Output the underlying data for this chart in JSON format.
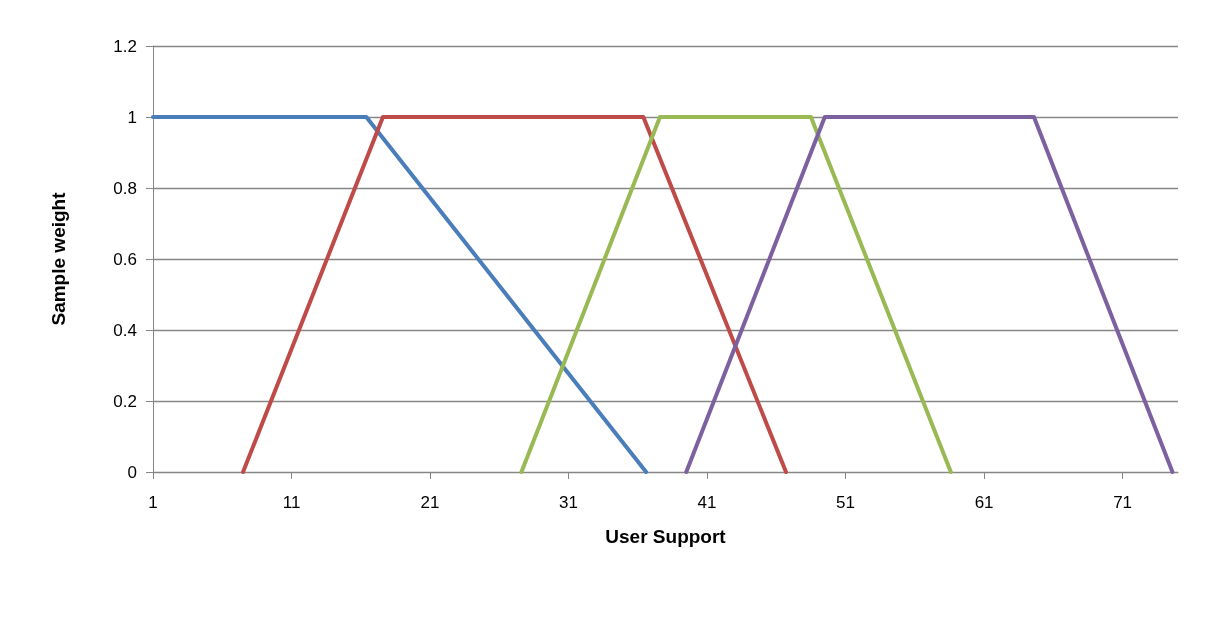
{
  "chart_data": {
    "type": "line",
    "xlabel": "User Support",
    "ylabel": "Sample weight",
    "xlim": [
      1,
      75
    ],
    "xticks": [
      1,
      11,
      21,
      31,
      41,
      51,
      61,
      71
    ],
    "ylim": [
      0,
      1.2
    ],
    "yticks": [
      0,
      0.2,
      0.4,
      0.6,
      0.8,
      1,
      1.2
    ],
    "grid": "y",
    "marker": "none",
    "line_style": "solid",
    "series": [
      {
        "color": "#4a7ebb",
        "x": [
          1,
          16.4,
          36.6
        ],
        "values": [
          1,
          1,
          0
        ]
      },
      {
        "color": "#be4b48",
        "x": [
          7.5,
          17.6,
          36.4,
          46.7
        ],
        "values": [
          0,
          1,
          1,
          0
        ]
      },
      {
        "color": "#98b954",
        "x": [
          27.6,
          37.6,
          48.5,
          58.6
        ],
        "values": [
          0,
          1,
          1,
          0
        ]
      },
      {
        "color": "#7d60a0",
        "x": [
          39.5,
          49.5,
          64.6,
          74.6
        ],
        "values": [
          0,
          1,
          1,
          0
        ]
      }
    ]
  }
}
